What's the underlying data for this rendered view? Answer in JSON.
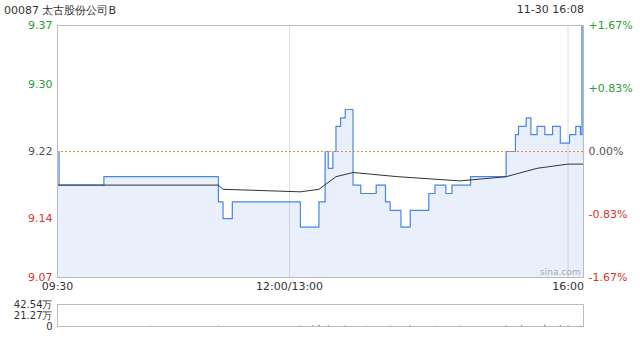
{
  "chart_data": [
    {
      "type": "line",
      "title": "00087 太古股份公司B",
      "subtitle": "11-30 16:08",
      "annotations": [
        "sina.com"
      ],
      "xlim": [
        0,
        340
      ],
      "xticks": [
        {
          "value": 0,
          "label": "09:30"
        },
        {
          "value": 150,
          "label": "12:00/13:00"
        },
        {
          "value": 330,
          "label": "16:00"
        }
      ],
      "ylim": [
        9.07,
        9.37
      ],
      "yticks": [
        9.37,
        {
          "value": 9.3,
          "label": "9.30"
        },
        9.22,
        9.14,
        9.07
      ],
      "y2lim": [
        -1.67,
        1.67
      ],
      "y2ticks": [
        {
          "value": 1.67,
          "label": "+1.67%"
        },
        {
          "value": 0.83,
          "label": "+0.83%"
        },
        {
          "value": 0,
          "label": "0.00%"
        },
        {
          "value": -0.83,
          "label": "-0.83%"
        },
        {
          "value": -1.67,
          "label": "-1.67%"
        }
      ],
      "reference": 9.22,
      "grid": true,
      "series": [
        {
          "type": "area",
          "color": "#4a86e8",
          "x": [
            0,
            1,
            30,
            104,
            107,
            113,
            157,
            169,
            173,
            175,
            178,
            180,
            183,
            186,
            191,
            196,
            202,
            206,
            212,
            215,
            222,
            228,
            235,
            240,
            244,
            251,
            255,
            260,
            267,
            280,
            290,
            296,
            298,
            303,
            306,
            310,
            315,
            320,
            325,
            331,
            335,
            338,
            339,
            340
          ],
          "values": [
            9.22,
            9.18,
            9.19,
            9.16,
            9.14,
            9.16,
            9.13,
            9.16,
            9.22,
            9.2,
            9.22,
            9.25,
            9.26,
            9.27,
            9.18,
            9.17,
            9.17,
            9.18,
            9.16,
            9.15,
            9.13,
            9.15,
            9.15,
            9.17,
            9.18,
            9.17,
            9.18,
            9.18,
            9.19,
            9.19,
            9.22,
            9.24,
            9.25,
            9.26,
            9.24,
            9.25,
            9.24,
            9.25,
            9.23,
            9.24,
            9.25,
            9.24,
            9.37,
            9.21
          ]
        },
        {
          "type": "line",
          "color": "#333333",
          "x": [
            0,
            104,
            107,
            157,
            169,
            180,
            191,
            220,
            260,
            290,
            310,
            330,
            340
          ],
          "values": [
            9.18,
            9.18,
            9.175,
            9.172,
            9.175,
            9.19,
            9.195,
            9.19,
            9.185,
            9.19,
            9.2,
            9.205,
            9.205
          ]
        }
      ]
    },
    {
      "type": "bar",
      "color": "#555555",
      "xlim": [
        0,
        340
      ],
      "ylim": [
        0,
        425400
      ],
      "yticks": [
        {
          "value": 425400,
          "label": "42.54万"
        },
        {
          "value": 212700,
          "label": "21.27万"
        },
        0
      ],
      "x": [
        0,
        5,
        20,
        60,
        104,
        113,
        157,
        165,
        169,
        175,
        186,
        200,
        215,
        228,
        244,
        260,
        290,
        300,
        315,
        325,
        330,
        338,
        340
      ],
      "values": [
        9000,
        3000,
        2000,
        4000,
        6000,
        3000,
        8000,
        12000,
        25000,
        15000,
        9000,
        4000,
        6000,
        14000,
        5000,
        7000,
        10000,
        16000,
        22000,
        18000,
        12000,
        9000,
        30000
      ]
    }
  ]
}
